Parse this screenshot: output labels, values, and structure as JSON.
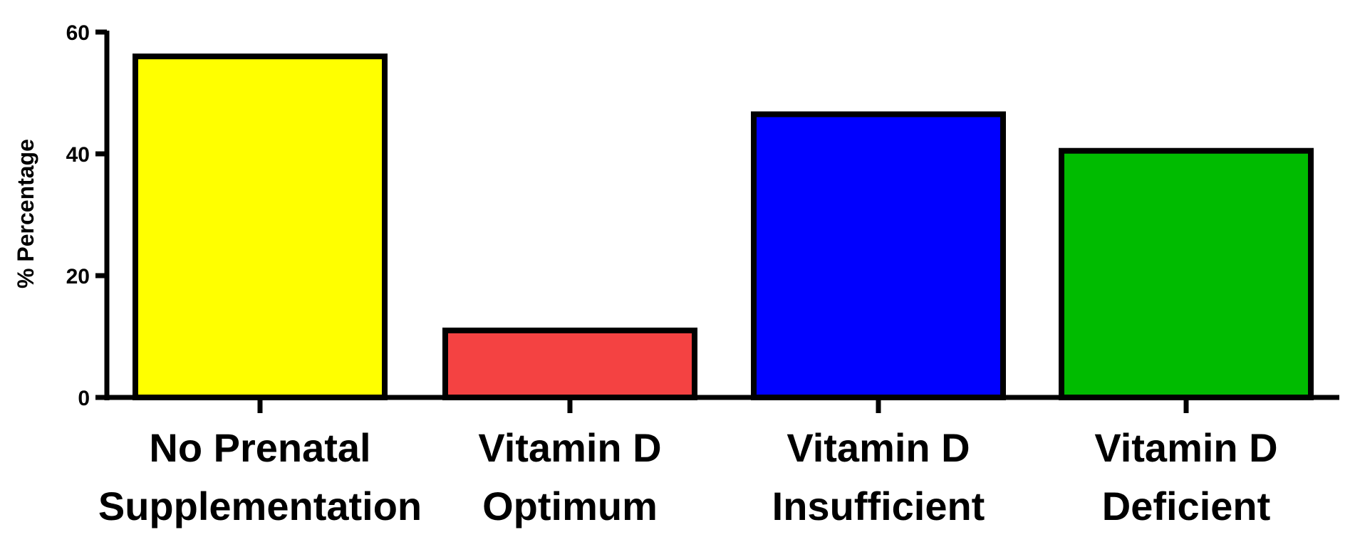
{
  "chart_data": {
    "type": "bar",
    "title": "",
    "xlabel": "",
    "ylabel": "% Percentage",
    "ylim": [
      0,
      60
    ],
    "yticks": [
      "0",
      "20",
      "40",
      "60"
    ],
    "grid": false,
    "categories": [
      [
        "No Prenatal",
        "Supplementation"
      ],
      [
        "Vitamin D",
        "Optimum"
      ],
      [
        "Vitamin D",
        "Insufficient"
      ],
      [
        "Vitamin D",
        "Deficient"
      ]
    ],
    "values": [
      56,
      11,
      46.5,
      40.5
    ],
    "colors": [
      "#ffff00",
      "#f44242",
      "#0000ff",
      "#00bb00"
    ]
  }
}
